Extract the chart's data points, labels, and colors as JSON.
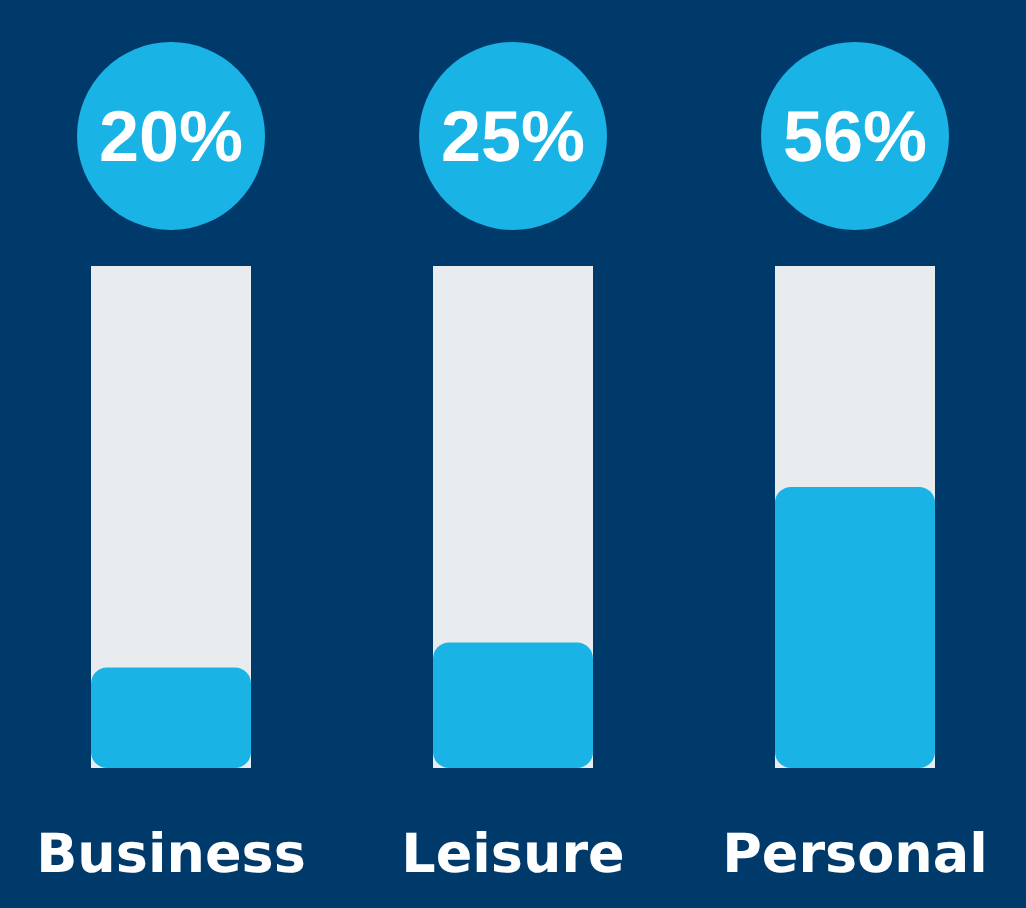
{
  "chart_data": {
    "type": "bar",
    "categories": [
      "Business",
      "Leisure",
      "Personal"
    ],
    "values": [
      20,
      25,
      56
    ],
    "value_labels": [
      "20%",
      "25%",
      "56%"
    ],
    "color": "#19b3e6",
    "ylim": [
      0,
      100
    ],
    "tick_labels": "x"
  }
}
